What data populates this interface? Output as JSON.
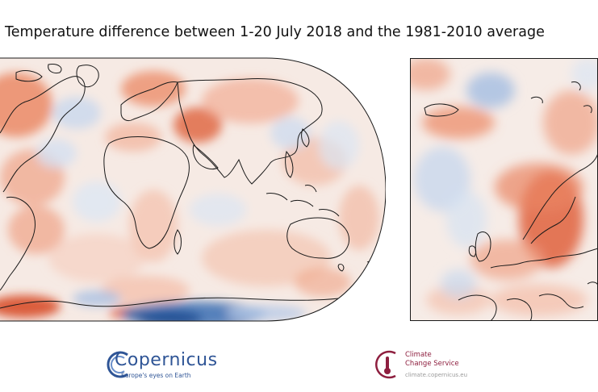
{
  "figure": {
    "title": "Temperature difference between 1-20 July 2018 and the 1981-2010 average"
  },
  "maps": {
    "world": {
      "projection": "oval world",
      "palette": {
        "warm": "#e0623d",
        "cool": "#3a6fb4",
        "neutral": "#f7f7f7"
      }
    },
    "europe": {
      "region": "Europe",
      "palette": {
        "warm": "#e0623d",
        "cool": "#3a6fb4",
        "neutral": "#f7f7f7"
      }
    }
  },
  "logos": {
    "copernicus": {
      "name": "Copernicus",
      "tagline": "Europe's eyes on Earth",
      "color": "#2f5596"
    },
    "c3s": {
      "line1": "Climate",
      "line2": "Change Service",
      "url": "climate.copernicus.eu",
      "color": "#8e1f3f"
    }
  }
}
